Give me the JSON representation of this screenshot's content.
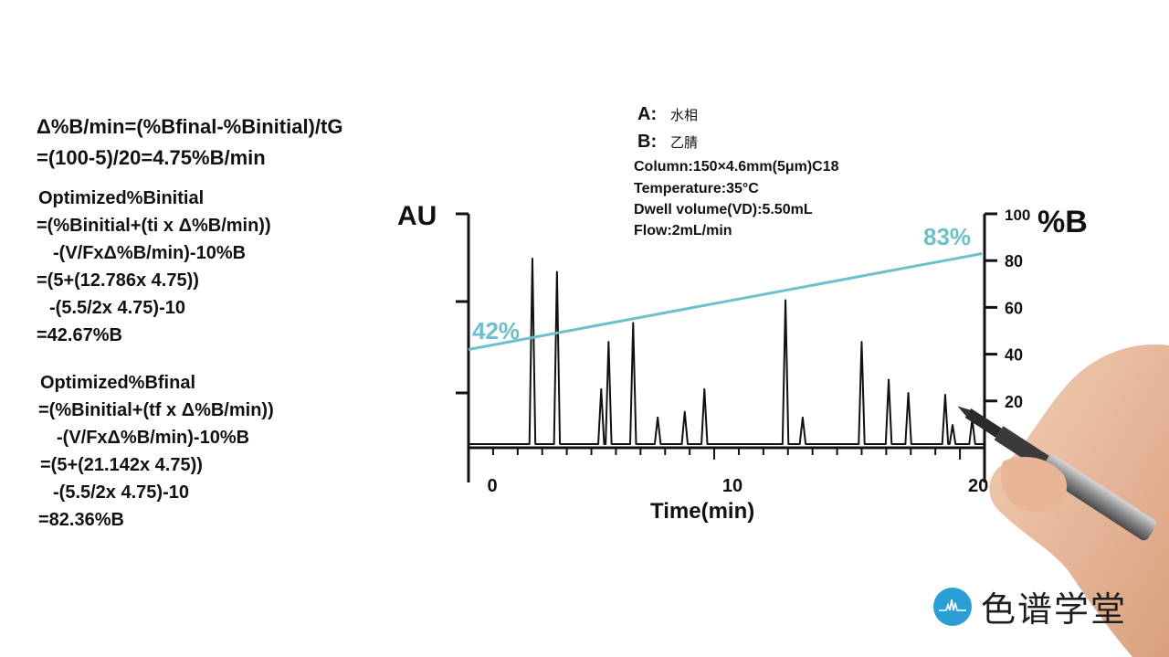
{
  "formulas": {
    "line1": "Δ%B/min=(%Bfinal-%Binitial)/tG",
    "line2": "=(100-5)/20=4.75%B/min",
    "initial": {
      "title": "Optimized%Binitial",
      "l1": "=(%Binitial+(ti x Δ%B/min))",
      "l2": "-(V/FxΔ%B/min)-10%B",
      "l3": "=(5+(12.786x 4.75))",
      "l4": "-(5.5/2x 4.75)-10",
      "result": "=42.67%B"
    },
    "final": {
      "title": "Optimized%Bfinal",
      "l1": "=(%Binitial+(tf x Δ%B/min))",
      "l2": "-(V/FxΔ%B/min)-10%B",
      "l3": "=(5+(21.142x 4.75))",
      "l4": "-(5.5/2x 4.75)-10",
      "result": "=82.36%B"
    }
  },
  "legend": {
    "a_key": "A:",
    "a_value": "水相",
    "b_key": "B:",
    "b_value": "乙腈",
    "column": "Column:150×4.6mm(5μm)C18",
    "temperature": "Temperature:35°C",
    "dwell": "Dwell volume(VD):5.50mL",
    "flow": "Flow:2mL/min"
  },
  "chart_data": {
    "type": "line",
    "xlabel": "Time(min)",
    "ylabel_left": "AU",
    "ylabel_right": "%B",
    "xlim": [
      0,
      21
    ],
    "x_ticks": [
      0,
      10,
      20
    ],
    "y_right_lim": [
      0,
      100
    ],
    "y_right_ticks": [
      20,
      40,
      60,
      80,
      100
    ],
    "colors": {
      "chromatogram": "#111111",
      "gradient": "#6cc0cc"
    },
    "series": [
      {
        "kind": "chromatogram",
        "peaks": [
          {
            "t": 2.6,
            "h": 1.0
          },
          {
            "t": 3.6,
            "h": 0.93
          },
          {
            "t": 5.4,
            "h": 0.31
          },
          {
            "t": 5.7,
            "h": 0.56
          },
          {
            "t": 6.7,
            "h": 0.66
          },
          {
            "t": 7.7,
            "h": 0.16
          },
          {
            "t": 8.8,
            "h": 0.19
          },
          {
            "t": 9.6,
            "h": 0.31
          },
          {
            "t": 12.9,
            "h": 0.78
          },
          {
            "t": 13.6,
            "h": 0.16
          },
          {
            "t": 16.0,
            "h": 0.56
          },
          {
            "t": 17.1,
            "h": 0.36
          },
          {
            "t": 17.9,
            "h": 0.29
          },
          {
            "t": 19.4,
            "h": 0.28
          },
          {
            "t": 19.7,
            "h": 0.12
          },
          {
            "t": 20.5,
            "h": 0.15
          }
        ]
      },
      {
        "kind": "gradient",
        "x": [
          0,
          20.9
        ],
        "y": [
          42,
          83
        ],
        "start_label": "42%",
        "end_label": "83%"
      }
    ]
  },
  "logo": {
    "text": "色谱学堂"
  }
}
